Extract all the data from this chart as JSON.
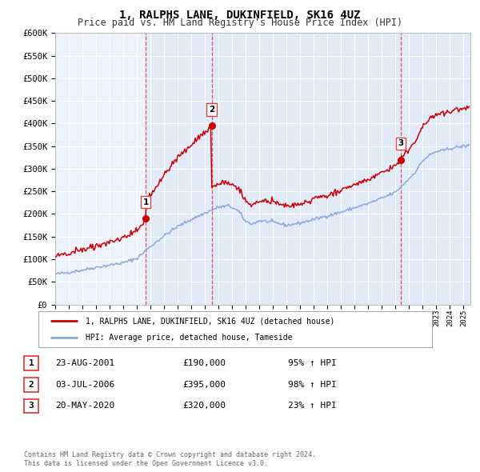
{
  "title": "1, RALPHS LANE, DUKINFIELD, SK16 4UZ",
  "subtitle": "Price paid vs. HM Land Registry's House Price Index (HPI)",
  "ylim": [
    0,
    600000
  ],
  "yticks": [
    0,
    50000,
    100000,
    150000,
    200000,
    250000,
    300000,
    350000,
    400000,
    450000,
    500000,
    550000,
    600000
  ],
  "xlim_start": 1995.0,
  "xlim_end": 2025.5,
  "sale_color": "#cc0000",
  "hpi_color": "#88aadd",
  "sale_label": "1, RALPHS LANE, DUKINFIELD, SK16 4UZ (detached house)",
  "hpi_label": "HPI: Average price, detached house, Tameside",
  "transactions": [
    {
      "num": 1,
      "date": "23-AUG-2001",
      "year": 2001.65,
      "price": 190000,
      "pct": "95%",
      "dir": "↑"
    },
    {
      "num": 2,
      "date": "03-JUL-2006",
      "year": 2006.5,
      "price": 395000,
      "pct": "98%",
      "dir": "↑"
    },
    {
      "num": 3,
      "date": "20-MAY-2020",
      "year": 2020.38,
      "price": 320000,
      "pct": "23%",
      "dir": "↑"
    }
  ],
  "footer1": "Contains HM Land Registry data © Crown copyright and database right 2024.",
  "footer2": "This data is licensed under the Open Government Licence v3.0.",
  "background_color": "#ffffff",
  "plot_bg_color": "#eef2fb",
  "grid_color": "#ffffff",
  "vline_color": "#dd4444",
  "shade_color": "#ccd9f0"
}
